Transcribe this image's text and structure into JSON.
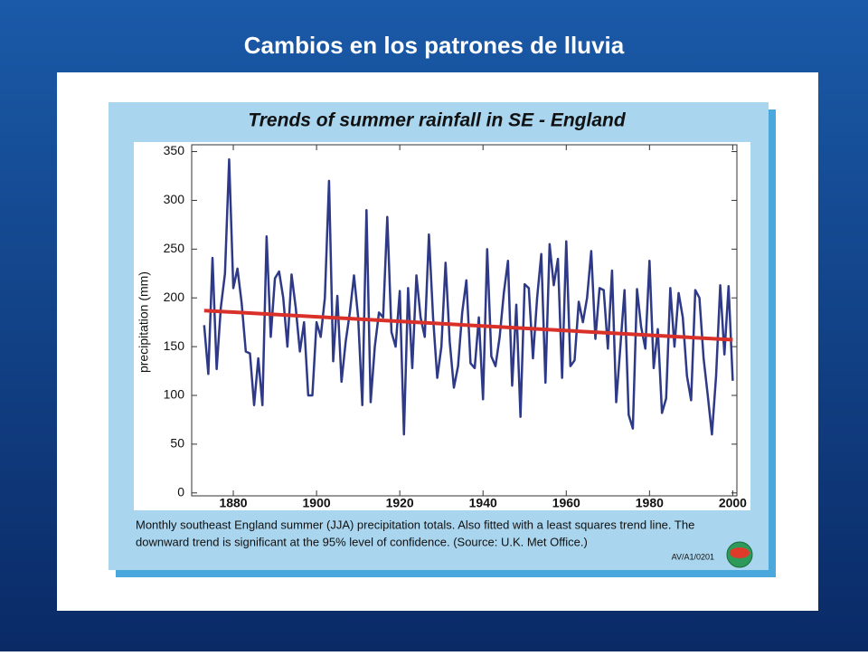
{
  "slide_title": "Cambios en los patrones de lluvia",
  "caption": [
    "Monthly southeast England summer (JJA) precipitation totals. Also fitted with a least squares trend line. The",
    "downward trend is significant at the 95% level of confidence. (Source: U.K. Met Office.)"
  ],
  "code": "AV/A1/0201",
  "chart_data": {
    "type": "line",
    "title": "Trends of summer rainfall in SE - England",
    "y_label": "precipitation (mm)",
    "xlim": [
      1870,
      2001
    ],
    "xticks": [
      1880,
      1900,
      1920,
      1940,
      1960,
      1980,
      2000
    ],
    "ylim": [
      -3,
      357
    ],
    "yticks": [
      0,
      50,
      100,
      150,
      200,
      250,
      300,
      350
    ],
    "series": [
      {
        "color": "#2e3a87",
        "x": [
          1873,
          1874,
          1875,
          1876,
          1877,
          1878,
          1879,
          1880,
          1881,
          1882,
          1883,
          1884,
          1885,
          1886,
          1887,
          1888,
          1889,
          1890,
          1891,
          1892,
          1893,
          1894,
          1895,
          1896,
          1897,
          1898,
          1899,
          1900,
          1901,
          1902,
          1903,
          1904,
          1905,
          1906,
          1907,
          1908,
          1909,
          1910,
          1911,
          1912,
          1913,
          1914,
          1915,
          1916,
          1917,
          1918,
          1919,
          1920,
          1921,
          1922,
          1923,
          1924,
          1925,
          1926,
          1927,
          1928,
          1929,
          1930,
          1931,
          1932,
          1933,
          1934,
          1935,
          1936,
          1937,
          1938,
          1939,
          1940,
          1941,
          1942,
          1943,
          1944,
          1945,
          1946,
          1947,
          1948,
          1949,
          1950,
          1951,
          1952,
          1953,
          1954,
          1955,
          1956,
          1957,
          1958,
          1959,
          1960,
          1961,
          1962,
          1963,
          1964,
          1965,
          1966,
          1967,
          1968,
          1969,
          1970,
          1971,
          1972,
          1973,
          1974,
          1975,
          1976,
          1977,
          1978,
          1979,
          1980,
          1981,
          1982,
          1983,
          1984,
          1985,
          1986,
          1987,
          1988,
          1989,
          1990,
          1991,
          1992,
          1993,
          1994,
          1995,
          1996,
          1997,
          1998,
          1999,
          2000
        ],
        "values": [
          172,
          122,
          241,
          127,
          190,
          225,
          342,
          210,
          230,
          195,
          145,
          143,
          90,
          138,
          90,
          263,
          160,
          220,
          227,
          200,
          150,
          224,
          190,
          145,
          175,
          100,
          100,
          175,
          160,
          200,
          320,
          135,
          202,
          114,
          155,
          185,
          223,
          180,
          90,
          290,
          93,
          150,
          185,
          180,
          283,
          165,
          150,
          207,
          60,
          210,
          128,
          223,
          180,
          160,
          265,
          180,
          118,
          150,
          236,
          155,
          108,
          130,
          185,
          218,
          133,
          128,
          180,
          96,
          250,
          140,
          130,
          160,
          205,
          238,
          110,
          193,
          78,
          214,
          210,
          138,
          200,
          245,
          113,
          255,
          213,
          240,
          118,
          258,
          130,
          136,
          196,
          175,
          200,
          248,
          158,
          210,
          208,
          148,
          228,
          93,
          150,
          208,
          80,
          66,
          209,
          170,
          148,
          238,
          128,
          168,
          82,
          97,
          210,
          150,
          205,
          180,
          120,
          95,
          208,
          200,
          138,
          100,
          60,
          120,
          213,
          142,
          212,
          115
        ]
      },
      {
        "color": "#d9302a",
        "x": [
          1873,
          2000
        ],
        "values": [
          187,
          157
        ]
      }
    ]
  }
}
